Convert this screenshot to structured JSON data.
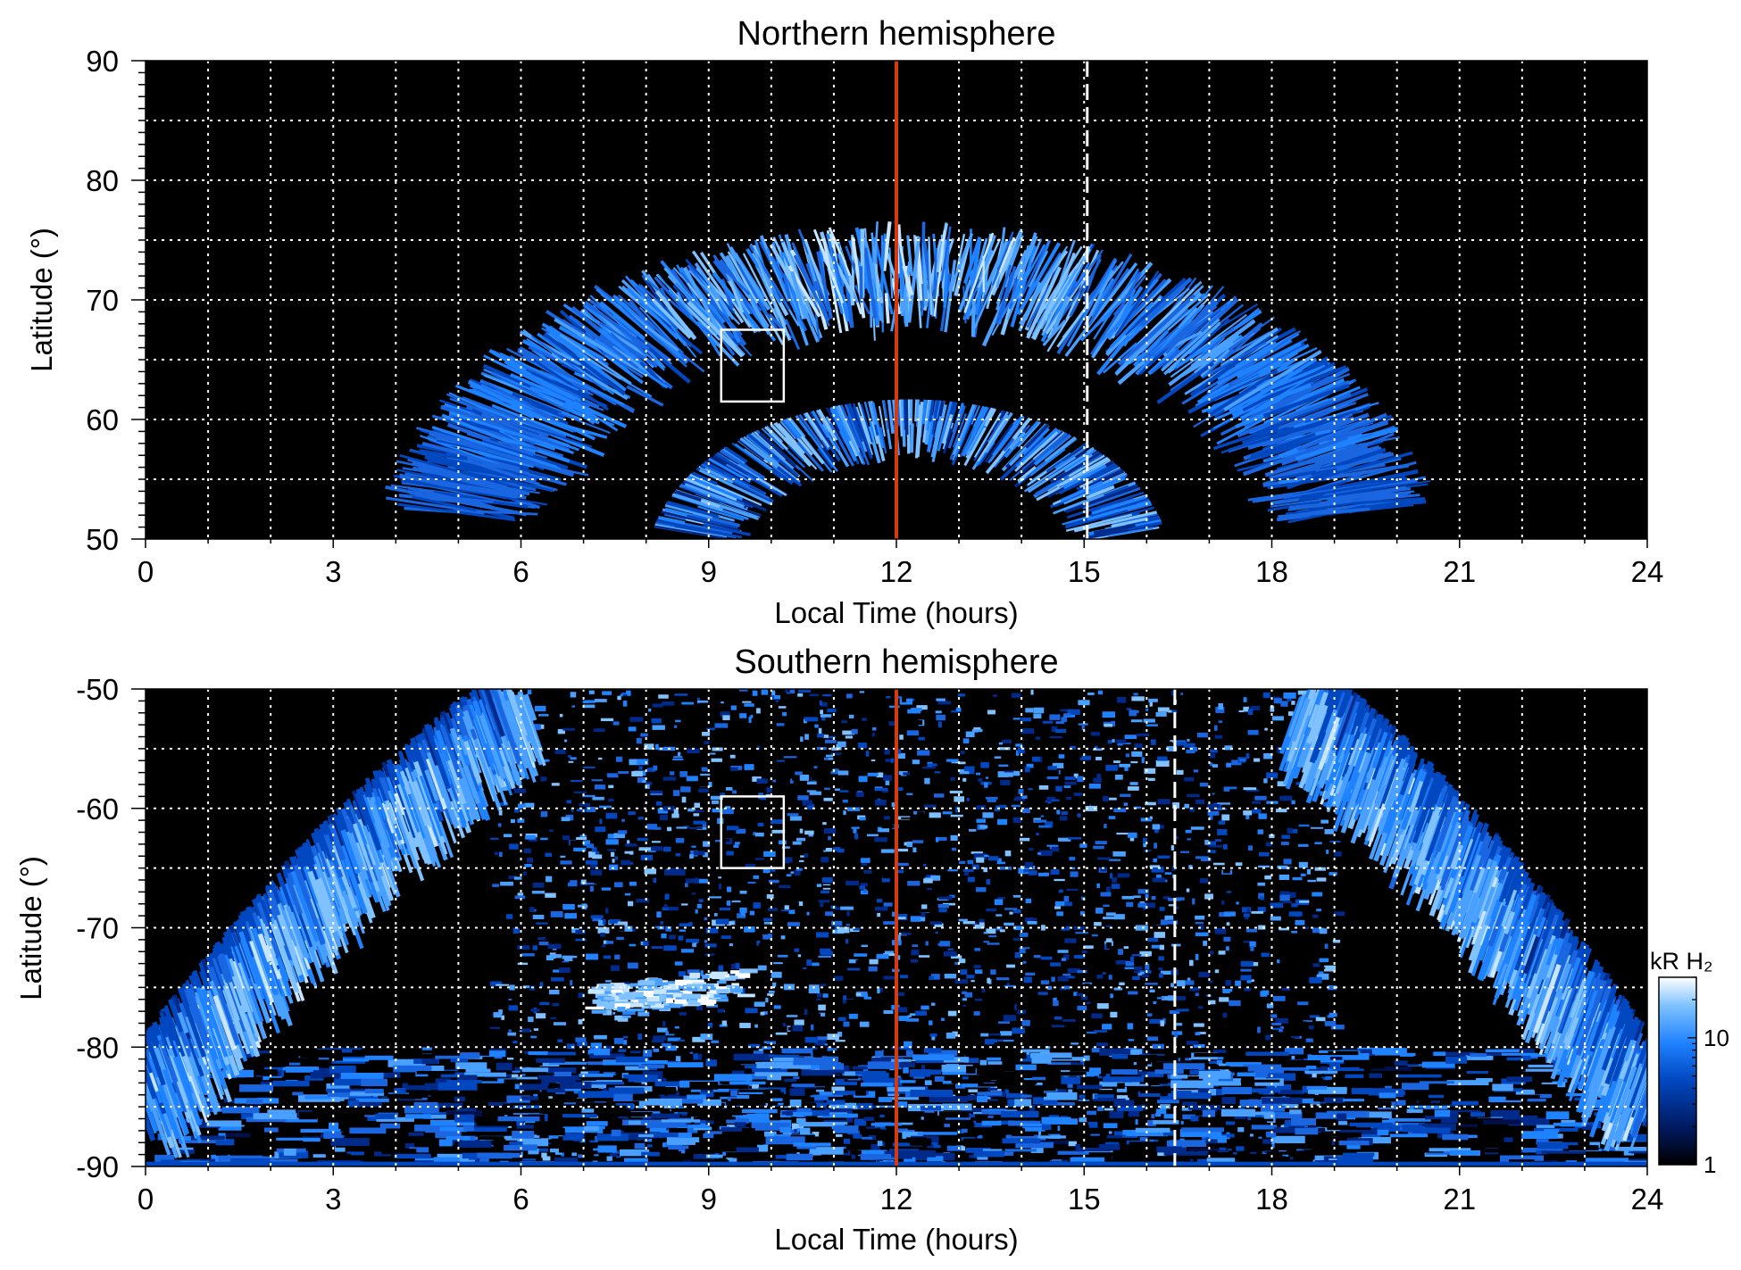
{
  "chart_data": [
    {
      "type": "heatmap",
      "title": "Northern hemisphere",
      "xlabel": "Local Time (hours)",
      "ylabel": "Latitude (°)",
      "xlim": [
        0,
        24
      ],
      "ylim": [
        50,
        90
      ],
      "xticks": [
        "0",
        "3",
        "6",
        "9",
        "12",
        "15",
        "18",
        "21",
        "24"
      ],
      "yticks": [
        "50",
        "60",
        "70",
        "80",
        "90"
      ],
      "grid": true,
      "noon_line_local_time": 12,
      "dashed_line_local_time": 15.05,
      "box": {
        "lt": [
          9.2,
          10.2
        ],
        "lat": [
          61.5,
          67.5
        ]
      },
      "emission": {
        "arc_poleward_latitude": 68,
        "arc_equatorward_latitude": 62,
        "arc_local_time_range": [
          8.5,
          16.3
        ],
        "inner_arc_latitude": 56
      }
    },
    {
      "type": "heatmap",
      "title": "Southern hemisphere",
      "xlabel": "Local Time (hours)",
      "ylabel": "Latitude (°)",
      "xlim": [
        0,
        24
      ],
      "ylim": [
        -90,
        -50
      ],
      "xticks": [
        "0",
        "3",
        "6",
        "9",
        "12",
        "15",
        "18",
        "21",
        "24"
      ],
      "yticks": [
        "-90",
        "-80",
        "-70",
        "-60",
        "-50"
      ],
      "grid": true,
      "noon_line_local_time": 12,
      "dashed_line_local_time": 16.45,
      "box": {
        "lt": [
          9.2,
          10.2
        ],
        "lat": [
          -65,
          -59
        ]
      },
      "emission": {
        "dawn_arc_local_time_range": [
          0,
          5.9
        ],
        "dusk_arc_local_time_range": [
          18.6,
          24
        ],
        "bright_patch": {
          "lt": [
            7,
            9.5
          ],
          "lat": -76
        }
      },
      "colorbar": {
        "label": "kR H₂",
        "scale": "log",
        "range": [
          1,
          30
        ],
        "tick_labels": [
          "1",
          "10"
        ],
        "colors": [
          "#000000",
          "#001a60",
          "#0047c0",
          "#1f82ff",
          "#7fc2ff",
          "#ffffff"
        ]
      }
    }
  ]
}
